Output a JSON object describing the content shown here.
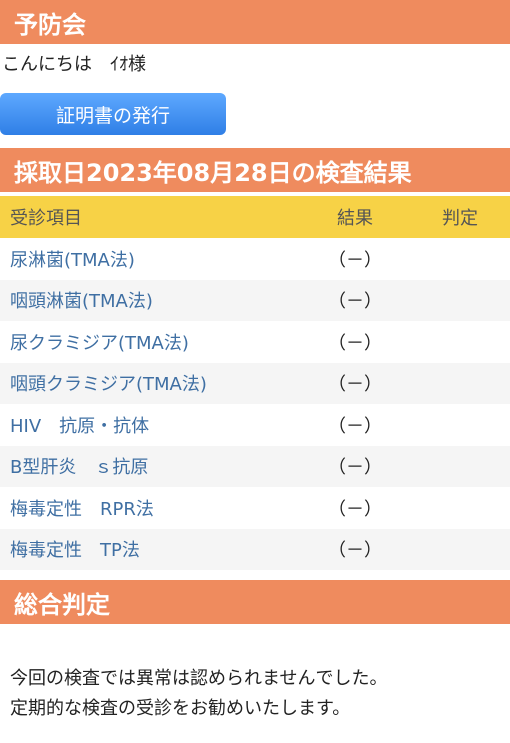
{
  "header": {
    "title": "予防会"
  },
  "greeting": "こんにちは　ｲｵ様",
  "certificate_button": "証明書の発行",
  "results_section": {
    "title": "採取日2023年08月28日の検査結果"
  },
  "table": {
    "columns": [
      "受診項目",
      "結果",
      "判定"
    ],
    "rows": [
      {
        "item": "尿淋菌(TMA法)",
        "result": "（－）",
        "judgement": ""
      },
      {
        "item": "咽頭淋菌(TMA法)",
        "result": "（－）",
        "judgement": ""
      },
      {
        "item": "尿クラミジア(TMA法)",
        "result": "（－）",
        "judgement": ""
      },
      {
        "item": "咽頭クラミジア(TMA法)",
        "result": "（－）",
        "judgement": ""
      },
      {
        "item": "HIV　抗原・抗体",
        "result": "（－）",
        "judgement": ""
      },
      {
        "item": "B型肝炎　ｓ抗原",
        "result": "（－）",
        "judgement": ""
      },
      {
        "item": "梅毒定性　RPR法",
        "result": "（－）",
        "judgement": ""
      },
      {
        "item": "梅毒定性　TP法",
        "result": "（－）",
        "judgement": ""
      }
    ]
  },
  "summary_section": {
    "title": "総合判定",
    "lines": [
      "今回の検査では異常は認められませんでした。",
      "定期的な検査の受診をお勧めいたします。"
    ]
  },
  "colors": {
    "header_bar": "#ef8b5e",
    "table_header": "#f7d246",
    "button": "#2f7fe6",
    "item_text": "#3f6fa3"
  }
}
